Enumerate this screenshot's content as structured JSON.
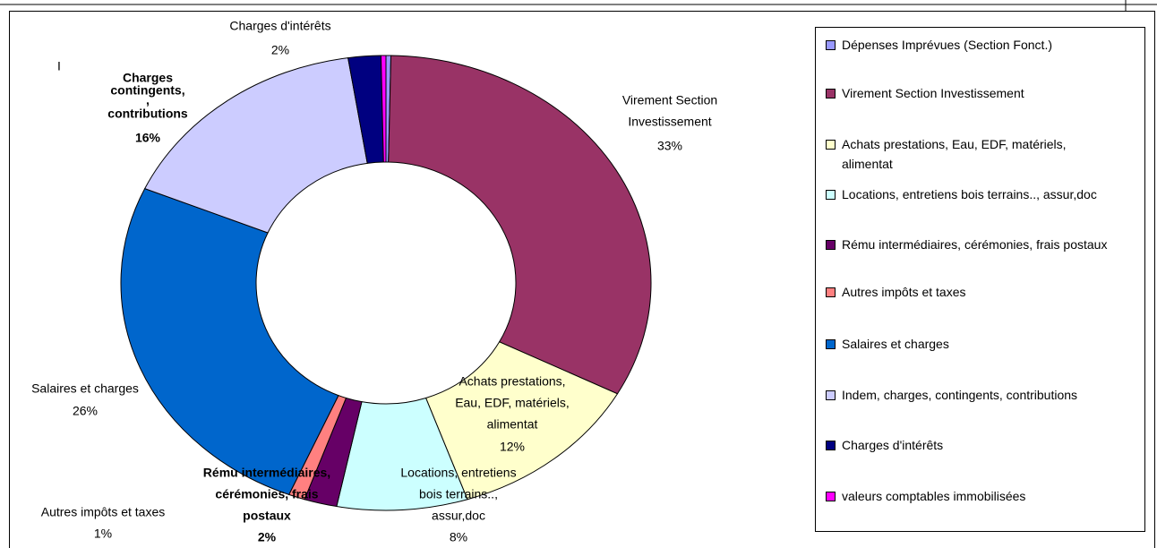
{
  "chart_data": {
    "type": "donut",
    "annotations": [
      "I"
    ],
    "categories": [
      "Dépenses Imprévues (Section Fonct.)",
      "Virement Section Investissement",
      "Achats prestations, Eau, EDF, matériels, alimentat",
      "Locations, entretiens bois terrains.., assur,doc",
      "Rému intermédiaires, cérémonies, frais postaux",
      "Autres impôts et taxes",
      "Salaires et charges",
      "Indem, charges, contingents, contributions",
      "Charges d'intérêts",
      "valeurs comptables immobilisées"
    ],
    "values": [
      0.3,
      33,
      12,
      8,
      2,
      1,
      26,
      16,
      2,
      0.3
    ],
    "value_labels": [
      null,
      "33%",
      "12%",
      "8%",
      "2%",
      "1%",
      "26%",
      "16%",
      "2%",
      null
    ],
    "slice_labels": [
      null,
      [
        "Virement Section",
        "Investissement"
      ],
      [
        "Achats prestations,",
        "Eau, EDF, matériels,",
        "alimentat"
      ],
      [
        "Locations, entretiens",
        "bois terrains..,",
        "assur,doc"
      ],
      [
        "Rému intermédiaires,",
        "cérémonies, frais",
        "postaux"
      ],
      [
        "Autres impôts et taxes"
      ],
      [
        "Salaires et charges"
      ],
      [
        "Charges",
        "contingents,",
        ",",
        "contributions"
      ],
      [
        "Charges d'intérêts"
      ],
      null
    ],
    "colors": [
      "#9999ff",
      "#993366",
      "#ffffcc",
      "#ccffff",
      "#660066",
      "#ff8080",
      "#0066cc",
      "#ccccff",
      "#000080",
      "#ff00ff"
    ],
    "legend": "right"
  }
}
